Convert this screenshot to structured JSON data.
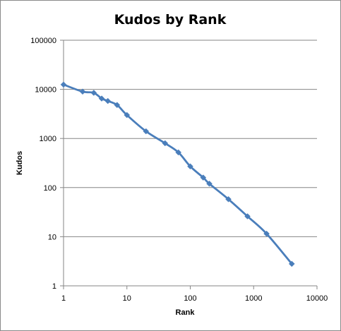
{
  "chart_data": {
    "type": "line",
    "title": "Kudos by Rank",
    "xlabel": "Rank",
    "ylabel": "Kudos",
    "xscale": "log",
    "yscale": "log",
    "xlim": [
      1,
      10000
    ],
    "ylim": [
      1,
      100000
    ],
    "x_ticks": [
      "1",
      "10",
      "100",
      "1000",
      "10000"
    ],
    "y_ticks": [
      "1",
      "10",
      "100",
      "1000",
      "10000",
      "100000"
    ],
    "grid": "horizontal",
    "legend": "none",
    "series": [
      {
        "color": "#4a7ebb",
        "marker": "diamond",
        "x": [
          1,
          2,
          3,
          4,
          5,
          7,
          10,
          20,
          40,
          65,
          100,
          160,
          200,
          400,
          800,
          1600,
          4000
        ],
        "y": [
          12500,
          9000,
          8500,
          6500,
          5800,
          4800,
          3000,
          1400,
          800,
          520,
          270,
          160,
          120,
          58,
          26,
          11.5,
          2.8
        ]
      }
    ]
  }
}
